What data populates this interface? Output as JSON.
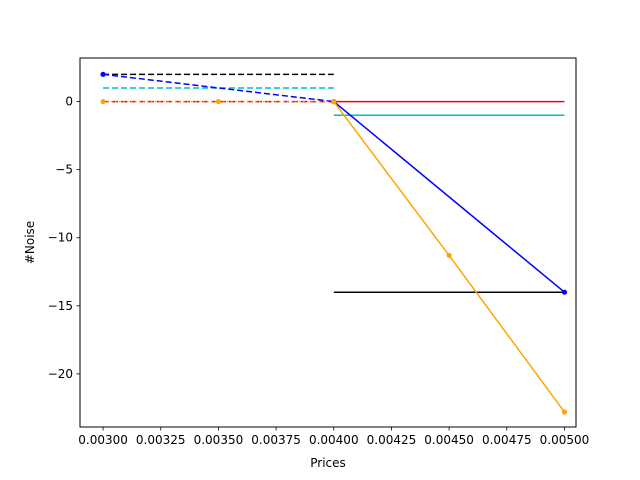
{
  "chart_data": {
    "type": "line",
    "title": "",
    "xlabel": "Prices",
    "ylabel": "#Noise",
    "xlim": [
      0.0029,
      0.00505
    ],
    "ylim": [
      -23.9,
      3.2
    ],
    "grid": false,
    "xticks": [
      0.003,
      0.00325,
      0.0035,
      0.00375,
      0.004,
      0.00425,
      0.0045,
      0.00475,
      0.005
    ],
    "xtick_labels": [
      "0.00300",
      "0.00325",
      "0.00350",
      "0.00375",
      "0.00400",
      "0.00425",
      "0.00450",
      "0.00475",
      "0.00500"
    ],
    "yticks": [
      0,
      -5,
      -10,
      -15,
      -20
    ],
    "ytick_labels": [
      "0",
      "−5",
      "−10",
      "−15",
      "−20"
    ],
    "series": [
      {
        "color": "#000000",
        "style": "dashed",
        "marker": false,
        "x": [
          0.003,
          0.004
        ],
        "y": [
          2,
          2
        ]
      },
      {
        "color": "#00bfbf",
        "style": "dashed",
        "marker": false,
        "x": [
          0.003,
          0.004
        ],
        "y": [
          1,
          1
        ]
      },
      {
        "color": "#ff0000",
        "style": "dashed",
        "marker": false,
        "x": [
          0.003,
          0.004
        ],
        "y": [
          0,
          0
        ]
      },
      {
        "color": "#0000ff",
        "style": "dashed",
        "marker": true,
        "x": [
          0.003,
          0.004
        ],
        "y": [
          2,
          0
        ]
      },
      {
        "color": "#ffa500",
        "style": "dotted",
        "marker": true,
        "x": [
          0.003,
          0.0035,
          0.004
        ],
        "y": [
          0,
          0,
          0
        ]
      },
      {
        "color": "#000000",
        "style": "solid",
        "marker": false,
        "x": [
          0.004,
          0.005
        ],
        "y": [
          -14,
          -14
        ]
      },
      {
        "color": "#00bfbf",
        "style": "solid",
        "marker": false,
        "x": [
          0.004,
          0.005
        ],
        "y": [
          -1,
          -1
        ]
      },
      {
        "color": "#ff0000",
        "style": "solid",
        "marker": false,
        "x": [
          0.004,
          0.005
        ],
        "y": [
          0,
          0
        ]
      },
      {
        "color": "#0000ff",
        "style": "solid",
        "marker": true,
        "x": [
          0.004,
          0.005
        ],
        "y": [
          0,
          -14
        ]
      },
      {
        "color": "#ffa500",
        "style": "solid",
        "marker": true,
        "x": [
          0.004,
          0.0045,
          0.005
        ],
        "y": [
          0,
          -11.3,
          -22.8
        ]
      }
    ]
  }
}
